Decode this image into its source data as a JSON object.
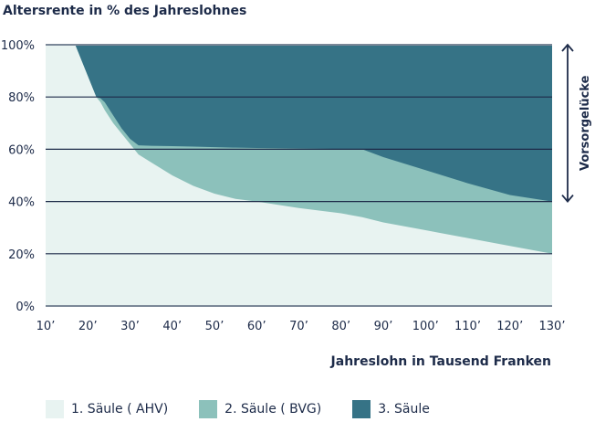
{
  "chart_data": {
    "type": "area",
    "title": "Altersrente in % des Jahreslohnes",
    "xlabel": "Jahreslohn in Tausend Franken",
    "ylabel": "",
    "xlim": [
      10,
      130
    ],
    "ylim": [
      0,
      100
    ],
    "x_ticks": [
      "10’",
      "20’",
      "30’",
      "40’",
      "50’",
      "60’",
      "70’",
      "80’",
      "90’",
      "100’",
      "110’",
      "120’",
      "130’"
    ],
    "y_ticks": [
      "0%",
      "20%",
      "40%",
      "60%",
      "80%",
      "100%"
    ],
    "grid": true,
    "stacked": true,
    "x": [
      10,
      17,
      20,
      22,
      23,
      24,
      26,
      28,
      30,
      32,
      35,
      40,
      45,
      50,
      55,
      60,
      70,
      80,
      85,
      90,
      100,
      110,
      120,
      130
    ],
    "series": [
      {
        "name": "1. Säule ( AHV)",
        "color": "#e8f3f1",
        "upper": [
          100,
          100,
          88,
          80,
          78,
          75,
          70,
          66,
          62,
          58,
          55,
          50,
          46,
          43,
          41,
          40,
          37.5,
          35.5,
          34,
          32,
          29,
          26,
          23,
          20
        ]
      },
      {
        "name": "2. Säule ( BVG)",
        "color": "#8cc1bb",
        "upper": [
          100,
          100,
          88,
          80,
          79.5,
          78,
          73,
          68,
          64,
          61.5,
          61.3,
          61.2,
          61,
          60.8,
          60.6,
          60.5,
          60.3,
          60.1,
          60,
          57,
          52,
          47,
          42.5,
          40
        ]
      },
      {
        "name": "3. Säule",
        "color": "#367386",
        "upper": [
          100,
          100,
          100,
          100,
          100,
          100,
          100,
          100,
          100,
          100,
          100,
          100,
          100,
          100,
          100,
          100,
          100,
          100,
          100,
          100,
          100,
          100,
          100,
          100
        ]
      }
    ],
    "annotations": [
      {
        "text": "Vorsorgelücke",
        "type": "double-arrow",
        "range": [
          40,
          100
        ]
      }
    ],
    "legend": "bottom"
  }
}
